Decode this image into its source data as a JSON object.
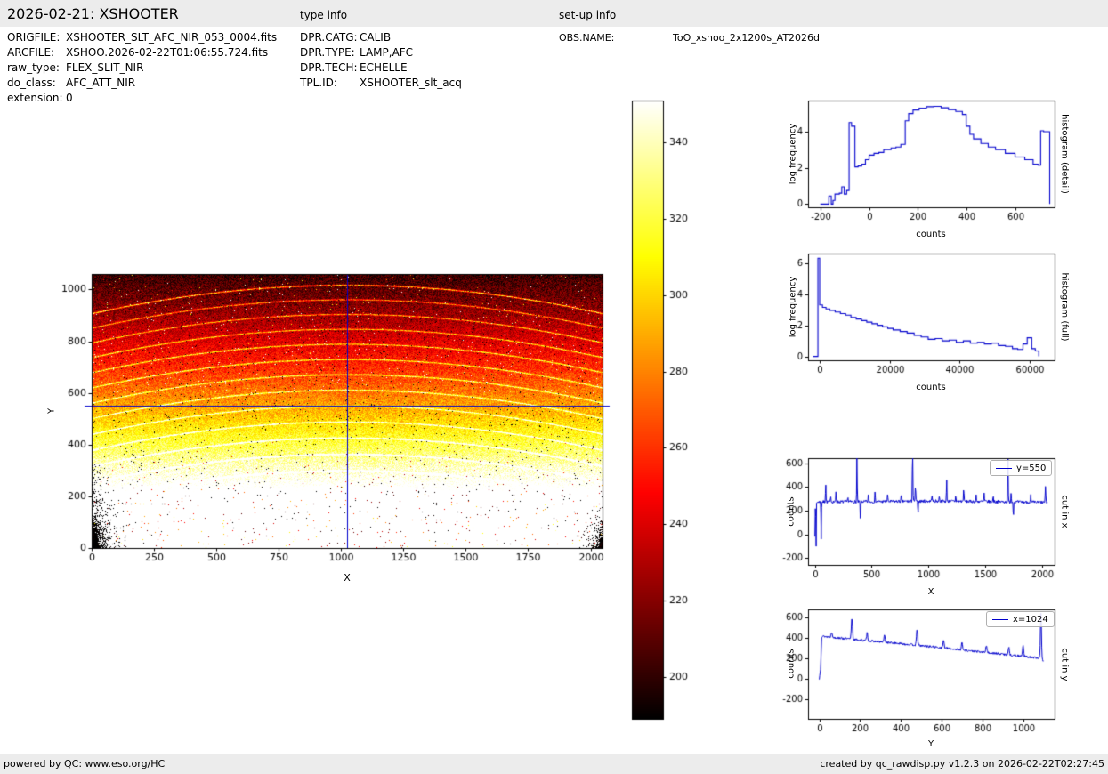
{
  "page": {
    "background": "#ffffff",
    "bar_color": "#ececec",
    "accent_line_color": "#0000cc"
  },
  "header": {
    "title": "2026-02-21: XSHOOTER",
    "type_info_label": "type info",
    "setup_info_label": "set-up info"
  },
  "metadata": {
    "file_info": [
      {
        "label": "ORIGFILE:",
        "value": "XSHOOTER_SLT_AFC_NIR_053_0004.fits"
      },
      {
        "label": "ARCFILE:",
        "value": "XSHOO.2026-02-22T01:06:55.724.fits"
      },
      {
        "label": "raw_type:",
        "value": "FLEX_SLIT_NIR"
      },
      {
        "label": "do_class:",
        "value": "AFC_ATT_NIR"
      },
      {
        "label": "extension:",
        "value": "0"
      }
    ],
    "type_info": [
      {
        "label": "DPR.CATG:",
        "value": "CALIB"
      },
      {
        "label": "DPR.TYPE:",
        "value": "LAMP,AFC"
      },
      {
        "label": "DPR.TECH:",
        "value": "ECHELLE"
      },
      {
        "label": "TPL.ID:",
        "value": "XSHOOTER_slt_acq"
      }
    ],
    "setup_info": [
      {
        "label": "OBS.NAME:",
        "value": "ToO_xshoo_2x1200s_AT2026d"
      }
    ]
  },
  "footer": {
    "left": "powered by QC: www.eso.org/HC",
    "right": "created by qc_rawdisp.py v1.2.3 on 2026-02-22T02:27:45"
  },
  "chart_data": [
    {
      "name": "raw-detector-image",
      "type": "heatmap",
      "xlabel": "X",
      "ylabel": "Y",
      "xlim": [
        0,
        2048
      ],
      "ylim": [
        0,
        1060
      ],
      "xticks": [
        0,
        250,
        500,
        750,
        1000,
        1250,
        1500,
        1750,
        2000
      ],
      "yticks": [
        0,
        200,
        400,
        600,
        800,
        1000
      ],
      "colormap": "hot",
      "value_range": [
        189,
        351
      ],
      "counts_profile": [
        [
          0,
          425
        ],
        [
          200,
          370
        ],
        [
          400,
          322
        ],
        [
          550,
          288
        ],
        [
          700,
          258
        ],
        [
          900,
          225
        ],
        [
          1060,
          202
        ]
      ],
      "noise_sigma": 11,
      "echelle_order_apex_y": [
        1018,
        962,
        905,
        848,
        790,
        731,
        672,
        612,
        551,
        489,
        427,
        364,
        300,
        236,
        171,
        105
      ],
      "order_curvature_drop": 110,
      "crosshair": {
        "x": 1024,
        "y": 550
      },
      "line_color": "#0000cc",
      "description": "NIR echelle flat/arc raw frame: bright (white) at bottom fading to dark red at top, curved echelle order arcs, dark bad-pixel blobs in lower-left and lower-right corners, blue crosshair at x=1024 y=550"
    },
    {
      "name": "colorbar",
      "type": "colorbar",
      "orientation": "vertical",
      "colormap": "hot",
      "range": [
        189,
        351
      ],
      "ticks": [
        200,
        220,
        240,
        260,
        280,
        300,
        320,
        340
      ]
    },
    {
      "name": "histogram-detail",
      "type": "line",
      "step": true,
      "xlabel": "counts",
      "ylabel": "log frequency",
      "side_label": "histogram (detail)",
      "xlim": [
        -250,
        760
      ],
      "ylim": [
        -0.18,
        5.72
      ],
      "xticks": [
        -200,
        0,
        200,
        400,
        600
      ],
      "yticks": [
        0,
        2,
        4
      ],
      "line_color": "#0000cc",
      "x": [
        -200,
        -175,
        -165,
        -155,
        -148,
        -140,
        -122,
        -112,
        -102,
        -92,
        -82,
        -72,
        -58,
        -45,
        -30,
        -15,
        0,
        20,
        40,
        60,
        90,
        110,
        130,
        148,
        162,
        180,
        205,
        235,
        265,
        295,
        325,
        355,
        382,
        398,
        413,
        428,
        458,
        488,
        518,
        558,
        598,
        638,
        672,
        692,
        703,
        715,
        740
      ],
      "y": [
        0,
        0,
        0.45,
        0,
        0.2,
        0.55,
        0.6,
        0.95,
        0.55,
        0.75,
        4.5,
        4.3,
        2.05,
        2.1,
        2.2,
        2.45,
        2.7,
        2.8,
        2.85,
        3.0,
        3.1,
        3.15,
        3.3,
        4.6,
        5.0,
        5.2,
        5.3,
        5.38,
        5.4,
        5.32,
        5.22,
        5.12,
        4.95,
        4.3,
        3.85,
        3.6,
        3.35,
        3.15,
        3.0,
        2.8,
        2.6,
        2.45,
        2.2,
        2.15,
        4.05,
        4.0,
        0
      ]
    },
    {
      "name": "histogram-full",
      "type": "line",
      "step": true,
      "xlabel": "counts",
      "ylabel": "log frequency",
      "side_label": "histogram (full)",
      "xlim": [
        -3200,
        67000
      ],
      "ylim": [
        -0.25,
        6.6
      ],
      "xticks": [
        0,
        20000,
        40000,
        60000
      ],
      "yticks": [
        0,
        2,
        4,
        6
      ],
      "line_color": "#0000cc",
      "x": [
        -1800,
        -400,
        100,
        900,
        1900,
        3000,
        4500,
        6000,
        7500,
        9000,
        10500,
        12000,
        13500,
        15000,
        16500,
        18000,
        19500,
        21000,
        23000,
        25000,
        27000,
        29000,
        31000,
        33000,
        35000,
        37000,
        39000,
        41000,
        43000,
        45000,
        47000,
        49000,
        51000,
        53000,
        55000,
        56500,
        58000,
        59200,
        60500,
        61500,
        62500
      ],
      "y": [
        0,
        6.3,
        3.3,
        3.15,
        3.05,
        2.95,
        2.85,
        2.75,
        2.65,
        2.5,
        2.4,
        2.3,
        2.2,
        2.1,
        2.0,
        1.9,
        1.8,
        1.7,
        1.6,
        1.5,
        1.35,
        1.25,
        1.1,
        1.15,
        1.0,
        1.05,
        0.9,
        1.0,
        0.85,
        0.9,
        0.8,
        0.85,
        0.7,
        0.65,
        0.5,
        0.45,
        0.8,
        1.2,
        0.5,
        0.35,
        0
      ]
    },
    {
      "name": "cut-in-x",
      "type": "line",
      "step": false,
      "xlabel": "X",
      "ylabel": "counts",
      "side_label": "cut in x",
      "legend": "y=550",
      "xlim": [
        -60,
        2110
      ],
      "ylim": [
        -260,
        645
      ],
      "xticks": [
        0,
        500,
        1000,
        1500,
        2000
      ],
      "yticks": [
        -200,
        0,
        200,
        400,
        600
      ],
      "line_color": "#0000cc",
      "noise_sigma": 13,
      "baseline": [
        [
          0,
          -20
        ],
        [
          4,
          250
        ],
        [
          25,
          274
        ],
        [
          500,
          276
        ],
        [
          1024,
          281
        ],
        [
          1500,
          277
        ],
        [
          2048,
          270
        ]
      ],
      "spikes": [
        {
          "x": 10,
          "v": -245,
          "w": 2
        },
        {
          "x": 55,
          "v": -40,
          "w": 3
        },
        {
          "x": 95,
          "v": 445,
          "w": 3
        },
        {
          "x": 140,
          "v": 330,
          "w": 3
        },
        {
          "x": 185,
          "v": 355,
          "w": 3
        },
        {
          "x": 290,
          "v": 330,
          "w": 3
        },
        {
          "x": 370,
          "v": 658,
          "w": 3
        },
        {
          "x": 400,
          "v": 118,
          "w": 3
        },
        {
          "x": 470,
          "v": 330,
          "w": 3
        },
        {
          "x": 530,
          "v": 362,
          "w": 3
        },
        {
          "x": 640,
          "v": 340,
          "w": 3
        },
        {
          "x": 760,
          "v": 335,
          "w": 3
        },
        {
          "x": 860,
          "v": 718,
          "w": 3.5
        },
        {
          "x": 885,
          "v": 430,
          "w": 3
        },
        {
          "x": 908,
          "v": 148,
          "w": 3
        },
        {
          "x": 1030,
          "v": 345,
          "w": 3
        },
        {
          "x": 1095,
          "v": 330,
          "w": 3
        },
        {
          "x": 1160,
          "v": 462,
          "w": 3
        },
        {
          "x": 1240,
          "v": 330,
          "w": 3
        },
        {
          "x": 1310,
          "v": 408,
          "w": 3
        },
        {
          "x": 1420,
          "v": 325,
          "w": 3
        },
        {
          "x": 1490,
          "v": 348,
          "w": 3
        },
        {
          "x": 1570,
          "v": 330,
          "w": 3
        },
        {
          "x": 1700,
          "v": 638,
          "w": 3
        },
        {
          "x": 1727,
          "v": 352,
          "w": 3
        },
        {
          "x": 1747,
          "v": 150,
          "w": 3
        },
        {
          "x": 1900,
          "v": 330,
          "w": 3
        },
        {
          "x": 2030,
          "v": 395,
          "w": 4
        }
      ]
    },
    {
      "name": "cut-in-y",
      "type": "line",
      "step": false,
      "xlabel": "Y",
      "ylabel": "counts",
      "side_label": "cut in y",
      "legend": "x=1024",
      "xlim": [
        -55,
        1155
      ],
      "ylim": [
        -390,
        680
      ],
      "xticks": [
        0,
        200,
        400,
        600,
        800,
        1000
      ],
      "yticks": [
        -200,
        0,
        200,
        400,
        600
      ],
      "line_color": "#0000cc",
      "noise_sigma": 11,
      "baseline": [
        [
          0,
          -5
        ],
        [
          6,
          100
        ],
        [
          12,
          418
        ],
        [
          200,
          380
        ],
        [
          400,
          345
        ],
        [
          600,
          305
        ],
        [
          800,
          262
        ],
        [
          950,
          232
        ],
        [
          1050,
          210
        ],
        [
          1090,
          202
        ],
        [
          1100,
          175
        ]
      ],
      "spikes": [
        {
          "x": 60,
          "v": 460,
          "w": 4
        },
        {
          "x": 160,
          "v": 598,
          "w": 4
        },
        {
          "x": 235,
          "v": 450,
          "w": 4
        },
        {
          "x": 320,
          "v": 425,
          "w": 4
        },
        {
          "x": 480,
          "v": 488,
          "w": 4
        },
        {
          "x": 610,
          "v": 380,
          "w": 4
        },
        {
          "x": 700,
          "v": 360,
          "w": 4
        },
        {
          "x": 820,
          "v": 330,
          "w": 4
        },
        {
          "x": 930,
          "v": 310,
          "w": 4
        },
        {
          "x": 1000,
          "v": 330,
          "w": 4
        },
        {
          "x": 1088,
          "v": 652,
          "w": 3.5
        }
      ]
    }
  ]
}
